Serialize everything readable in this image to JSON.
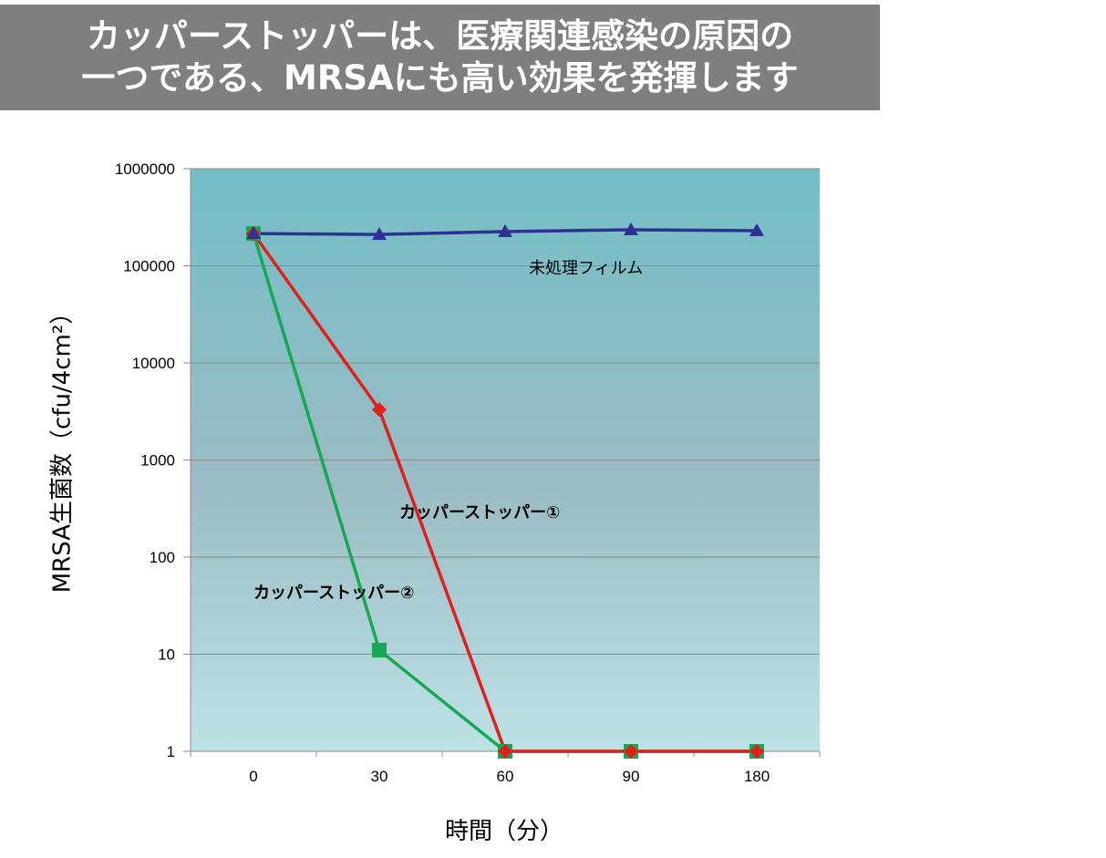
{
  "banner": {
    "line1": "カッパーストッパーは、医療関連感染の原因の",
    "line2": "一つである、MRSAにも高い効果を発揮します"
  },
  "chart_data": {
    "type": "line",
    "ylabel": "MRSA生菌数（cfu/4cm²）",
    "xlabel": "時間（分）",
    "yscale": "log",
    "ylim": [
      1,
      1000000
    ],
    "categories": [
      "0",
      "30",
      "60",
      "90",
      "180"
    ],
    "yticks": [
      "1",
      "10",
      "100",
      "1000",
      "10000",
      "100000",
      "1000000"
    ],
    "grid": true,
    "series": [
      {
        "name": "未処理フィルム",
        "marker": "triangle",
        "color": "#2e3192",
        "values": [
          215000,
          210000,
          225000,
          235000,
          230000
        ]
      },
      {
        "name": "カッパーストッパー①",
        "marker": "diamond",
        "color": "#e0201b",
        "values": [
          215000,
          3300,
          1,
          1,
          1
        ]
      },
      {
        "name": "カッパーストッパー②",
        "marker": "square",
        "color": "#16a852",
        "values": [
          215000,
          11,
          1,
          1,
          1
        ]
      }
    ]
  }
}
